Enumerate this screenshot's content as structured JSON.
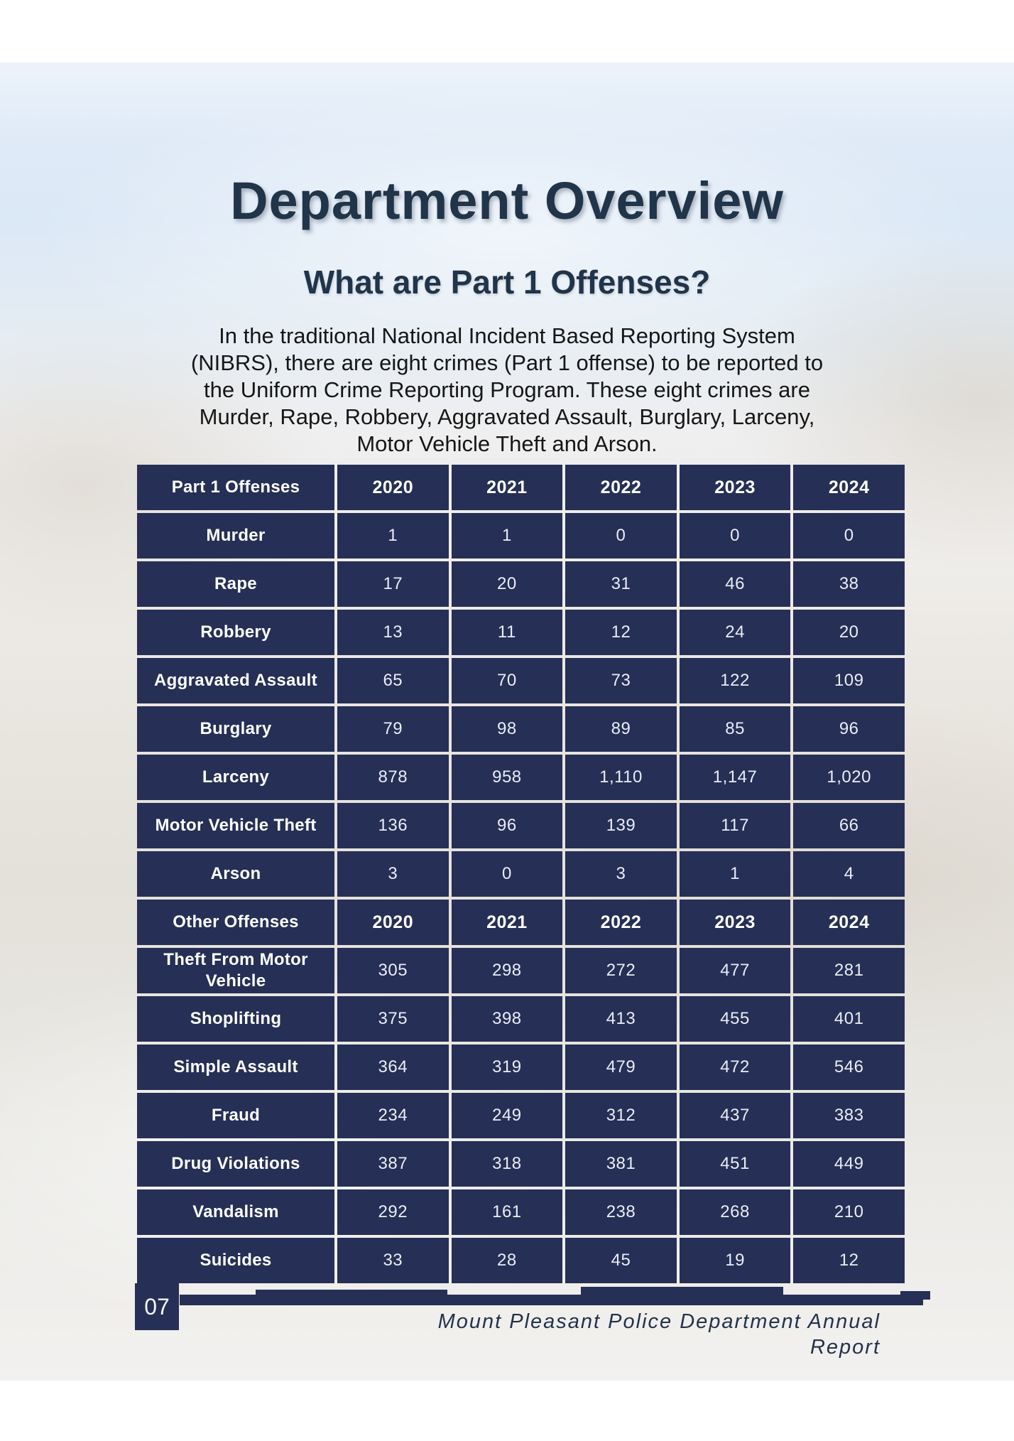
{
  "page": {
    "title": "Department Overview",
    "subtitle": "What are Part 1 Offenses?",
    "intro_lines": [
      "In the traditional National Incident Based Reporting System",
      "(NIBRS), there are eight crimes (Part 1 offense) to be reported to",
      "the Uniform Crime Reporting Program. These eight crimes are",
      "Murder, Rape, Robbery, Aggravated Assault, Burglary, Larceny,",
      "Motor Vehicle Theft and Arson."
    ]
  },
  "chart_data": {
    "type": "table",
    "sections": [
      {
        "header": {
          "label": "Part 1 Offenses",
          "years": [
            "2020",
            "2021",
            "2022",
            "2023",
            "2024"
          ]
        },
        "rows": [
          {
            "label": "Murder",
            "values": [
              "1",
              "1",
              "0",
              "0",
              "0"
            ]
          },
          {
            "label": "Rape",
            "values": [
              "17",
              "20",
              "31",
              "46",
              "38"
            ]
          },
          {
            "label": "Robbery",
            "values": [
              "13",
              "11",
              "12",
              "24",
              "20"
            ]
          },
          {
            "label": "Aggravated Assault",
            "values": [
              "65",
              "70",
              "73",
              "122",
              "109"
            ]
          },
          {
            "label": "Burglary",
            "values": [
              "79",
              "98",
              "89",
              "85",
              "96"
            ]
          },
          {
            "label": "Larceny",
            "values": [
              "878",
              "958",
              "1,110",
              "1,147",
              "1,020"
            ]
          },
          {
            "label": "Motor Vehicle Theft",
            "values": [
              "136",
              "96",
              "139",
              "117",
              "66"
            ]
          },
          {
            "label": "Arson",
            "values": [
              "3",
              "0",
              "3",
              "1",
              "4"
            ]
          }
        ]
      },
      {
        "header": {
          "label": "Other Offenses",
          "years": [
            "2020",
            "2021",
            "2022",
            "2023",
            "2024"
          ]
        },
        "rows": [
          {
            "label": "Theft From Motor Vehicle",
            "values": [
              "305",
              "298",
              "272",
              "477",
              "281"
            ]
          },
          {
            "label": "Shoplifting",
            "values": [
              "375",
              "398",
              "413",
              "455",
              "401"
            ]
          },
          {
            "label": "Simple Assault",
            "values": [
              "364",
              "319",
              "479",
              "472",
              "546"
            ]
          },
          {
            "label": "Fraud",
            "values": [
              "234",
              "249",
              "312",
              "437",
              "383"
            ]
          },
          {
            "label": "Drug Violations",
            "values": [
              "387",
              "318",
              "381",
              "451",
              "449"
            ]
          },
          {
            "label": "Vandalism",
            "values": [
              "292",
              "161",
              "238",
              "268",
              "210"
            ]
          },
          {
            "label": "Suicides",
            "values": [
              "33",
              "28",
              "45",
              "19",
              "12"
            ]
          }
        ]
      }
    ]
  },
  "footer": {
    "page_number": "07",
    "text": "Mount Pleasant Police Department Annual Report"
  },
  "colors": {
    "navy": "#262f55",
    "cell_text": "#e9edf6",
    "title_text": "#20344a",
    "footer_text": "#24324a"
  }
}
